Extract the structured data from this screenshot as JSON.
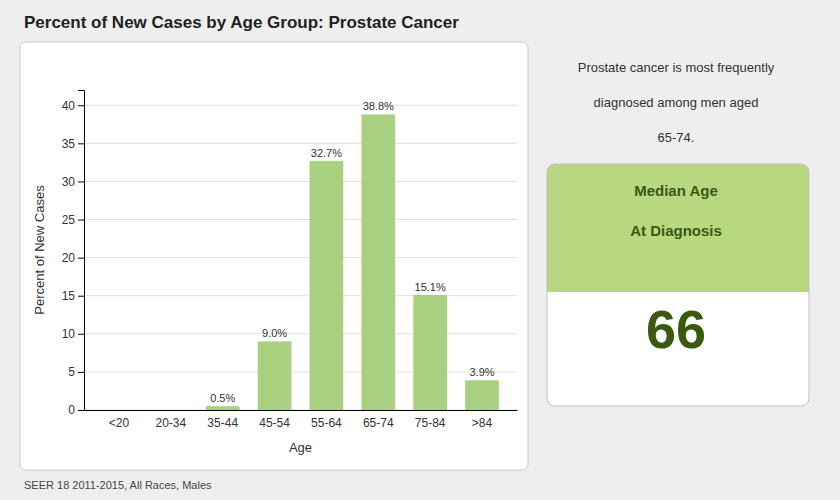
{
  "chart_data": {
    "type": "bar",
    "title": "Percent of New Cases by Age Group: Prostate Cancer",
    "categories": [
      "<20",
      "20-34",
      "35-44",
      "45-54",
      "55-64",
      "65-74",
      "75-84",
      ">84"
    ],
    "values": [
      0.0,
      0.0,
      0.5,
      9.0,
      32.7,
      38.8,
      15.1,
      3.9
    ],
    "value_labels": [
      null,
      null,
      "0.5%",
      "9.0%",
      "32.7%",
      "38.8%",
      "15.1%",
      "3.9%"
    ],
    "data_labels": true,
    "color": "#a8d080",
    "xlabel": "Age",
    "ylabel": "Percent of New Cases",
    "ylim": [
      0,
      42
    ],
    "yticks": [
      0,
      5,
      10,
      15,
      20,
      25,
      30,
      35,
      40
    ],
    "grid": true,
    "annotations": [
      "Prostate cancer is most frequently",
      "diagnosed among men aged",
      "65-74.",
      "Median Age",
      "At Diagnosis",
      "66",
      "SEER 18 2011-2015, All Races, Males"
    ]
  }
}
